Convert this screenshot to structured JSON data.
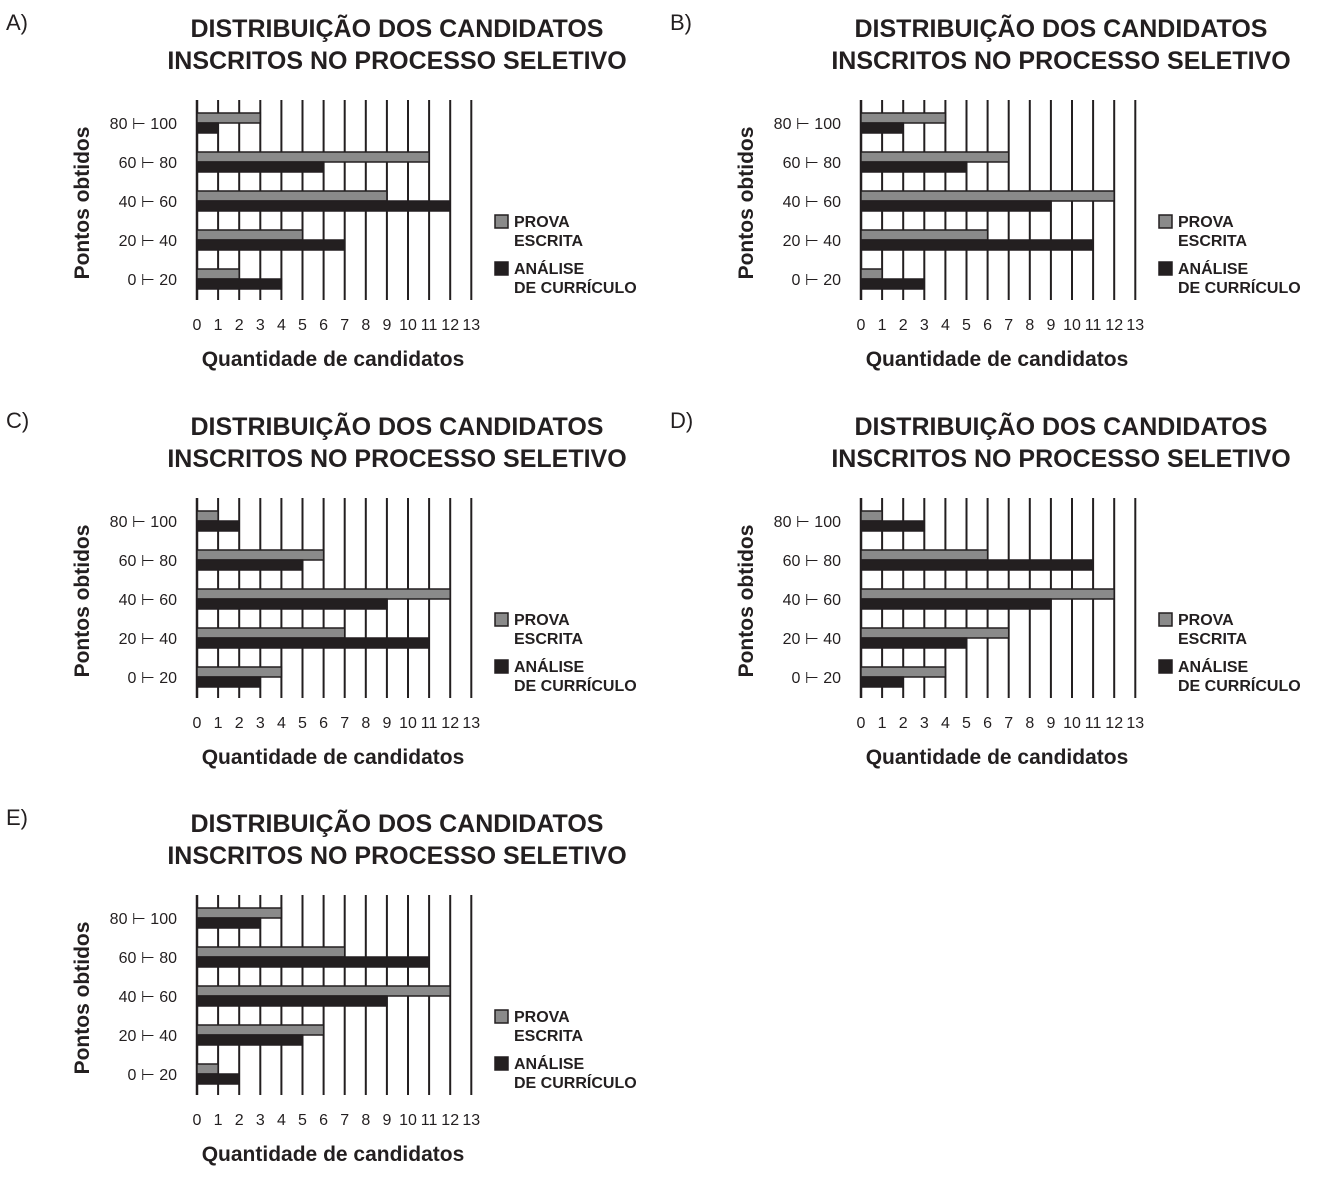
{
  "legend": {
    "prova_line1": "PROVA",
    "prova_line2": "ESCRITA",
    "analise_line1": "ANÁLISE",
    "analise_line2": "DE CURRÍCULO"
  },
  "colors": {
    "prova_escrita": "#8a8a8a",
    "analise_curriculo": "#231f20",
    "axis": "#231f20"
  },
  "chart_data": [
    {
      "option": "A)",
      "type": "bar",
      "orientation": "horizontal",
      "title_line1": "DISTRIBUIÇÃO DOS CANDIDATOS",
      "title_line2": "INSCRITOS NO PROCESSO SELETIVO",
      "ylabel": "Pontos obtidos",
      "xlabel": "Quantidade de candidatos",
      "xlim": [
        0,
        13
      ],
      "xticks": [
        "0",
        "1",
        "2",
        "3",
        "4",
        "5",
        "6",
        "7",
        "8",
        "9",
        "10",
        "11",
        "12",
        "13"
      ],
      "categories": [
        "0 ⊢ 20",
        "20 ⊢ 40",
        "40 ⊢ 60",
        "60 ⊢ 80",
        "80 ⊢ 100"
      ],
      "series": [
        {
          "name": "PROVA ESCRITA",
          "values": [
            2,
            5,
            9,
            11,
            3
          ]
        },
        {
          "name": "ANÁLISE DE CURRÍCULO",
          "values": [
            4,
            7,
            12,
            6,
            1
          ]
        }
      ],
      "grid": "vertical",
      "legend_position": "right"
    },
    {
      "option": "B)",
      "type": "bar",
      "orientation": "horizontal",
      "title_line1": "DISTRIBUIÇÃO DOS CANDIDATOS",
      "title_line2": "INSCRITOS NO PROCESSO SELETIVO",
      "ylabel": "Pontos obtidos",
      "xlabel": "Quantidade de candidatos",
      "xlim": [
        0,
        13
      ],
      "xticks": [
        "0",
        "1",
        "2",
        "3",
        "4",
        "5",
        "6",
        "7",
        "8",
        "9",
        "10",
        "11",
        "12",
        "13"
      ],
      "categories": [
        "0 ⊢ 20",
        "20 ⊢ 40",
        "40 ⊢ 60",
        "60 ⊢ 80",
        "80 ⊢ 100"
      ],
      "series": [
        {
          "name": "PROVA ESCRITA",
          "values": [
            1,
            6,
            12,
            7,
            4
          ]
        },
        {
          "name": "ANÁLISE DE CURRÍCULO",
          "values": [
            3,
            11,
            9,
            5,
            2
          ]
        }
      ],
      "grid": "vertical",
      "legend_position": "right"
    },
    {
      "option": "C)",
      "type": "bar",
      "orientation": "horizontal",
      "title_line1": "DISTRIBUIÇÃO DOS CANDIDATOS",
      "title_line2": "INSCRITOS NO PROCESSO SELETIVO",
      "ylabel": "Pontos obtidos",
      "xlabel": "Quantidade de candidatos",
      "xlim": [
        0,
        13
      ],
      "xticks": [
        "0",
        "1",
        "2",
        "3",
        "4",
        "5",
        "6",
        "7",
        "8",
        "9",
        "10",
        "11",
        "12",
        "13"
      ],
      "categories": [
        "0 ⊢ 20",
        "20 ⊢ 40",
        "40 ⊢ 60",
        "60 ⊢ 80",
        "80 ⊢ 100"
      ],
      "series": [
        {
          "name": "PROVA ESCRITA",
          "values": [
            4,
            7,
            12,
            6,
            1
          ]
        },
        {
          "name": "ANÁLISE DE CURRÍCULO",
          "values": [
            3,
            11,
            9,
            5,
            2
          ]
        }
      ],
      "grid": "vertical",
      "legend_position": "right"
    },
    {
      "option": "D)",
      "type": "bar",
      "orientation": "horizontal",
      "title_line1": "DISTRIBUIÇÃO DOS CANDIDATOS",
      "title_line2": "INSCRITOS NO PROCESSO SELETIVO",
      "ylabel": "Pontos obtidos",
      "xlabel": "Quantidade de candidatos",
      "xlim": [
        0,
        13
      ],
      "xticks": [
        "0",
        "1",
        "2",
        "3",
        "4",
        "5",
        "6",
        "7",
        "8",
        "9",
        "10",
        "11",
        "12",
        "13"
      ],
      "categories": [
        "0 ⊢ 20",
        "20 ⊢ 40",
        "40 ⊢ 60",
        "60 ⊢ 80",
        "80 ⊢ 100"
      ],
      "series": [
        {
          "name": "PROVA ESCRITA",
          "values": [
            4,
            7,
            12,
            6,
            1
          ]
        },
        {
          "name": "ANÁLISE DE CURRÍCULO",
          "values": [
            2,
            5,
            9,
            11,
            3
          ]
        }
      ],
      "grid": "vertical",
      "legend_position": "right"
    },
    {
      "option": "E)",
      "type": "bar",
      "orientation": "horizontal",
      "title_line1": "DISTRIBUIÇÃO DOS CANDIDATOS",
      "title_line2": "INSCRITOS NO PROCESSO SELETIVO",
      "ylabel": "Pontos obtidos",
      "xlabel": "Quantidade de candidatos",
      "xlim": [
        0,
        13
      ],
      "xticks": [
        "0",
        "1",
        "2",
        "3",
        "4",
        "5",
        "6",
        "7",
        "8",
        "9",
        "10",
        "11",
        "12",
        "13"
      ],
      "categories": [
        "0 ⊢ 20",
        "20 ⊢ 40",
        "40 ⊢ 60",
        "60 ⊢ 80",
        "80 ⊢ 100"
      ],
      "series": [
        {
          "name": "PROVA ESCRITA",
          "values": [
            1,
            6,
            12,
            7,
            4
          ]
        },
        {
          "name": "ANÁLISE DE CURRÍCULO",
          "values": [
            2,
            5,
            9,
            11,
            3
          ]
        }
      ],
      "grid": "vertical",
      "legend_position": "right"
    }
  ]
}
